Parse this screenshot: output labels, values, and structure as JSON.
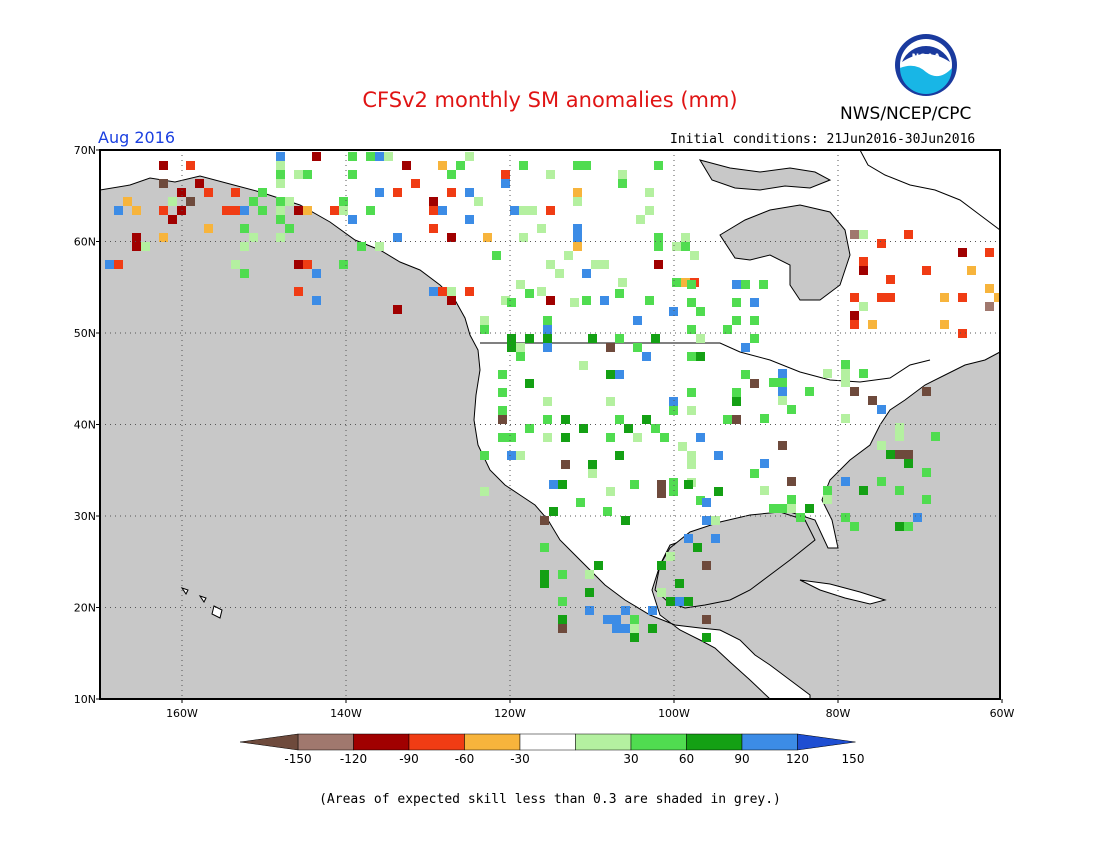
{
  "header": {
    "title": "CFSv2 monthly SM anomalies (mm)",
    "agency": "NWS/NCEP/CPC",
    "logo_text": "NOAA",
    "month": "Aug 2016",
    "initial_conditions": "Initial conditions: 21Jun2016-30Jun2016"
  },
  "colors": {
    "title": "#e01414",
    "ocean": "#c8c8c8",
    "land": "#ffffff",
    "month_label": "#1a3fe0"
  },
  "map": {
    "lat_labels": [
      "70N",
      "60N",
      "50N",
      "40N",
      "30N",
      "20N",
      "10N"
    ],
    "lon_labels": [
      "160W",
      "140W",
      "120W",
      "100W",
      "80W",
      "60W"
    ]
  },
  "legend": {
    "ticks": [
      "-150",
      "-120",
      "-90",
      "-60",
      "-30",
      "30",
      "60",
      "90",
      "120",
      "150"
    ],
    "colors": [
      "#6e4a3c",
      "#a0786e",
      "#a00000",
      "#f03c14",
      "#f7b43c",
      "#ffffff",
      "#b4f0a0",
      "#50dc50",
      "#14a014",
      "#3c8ce6",
      "#1e4ed2"
    ]
  },
  "footnote": "(Areas of expected skill less than 0.3 are shaded in grey.)"
}
